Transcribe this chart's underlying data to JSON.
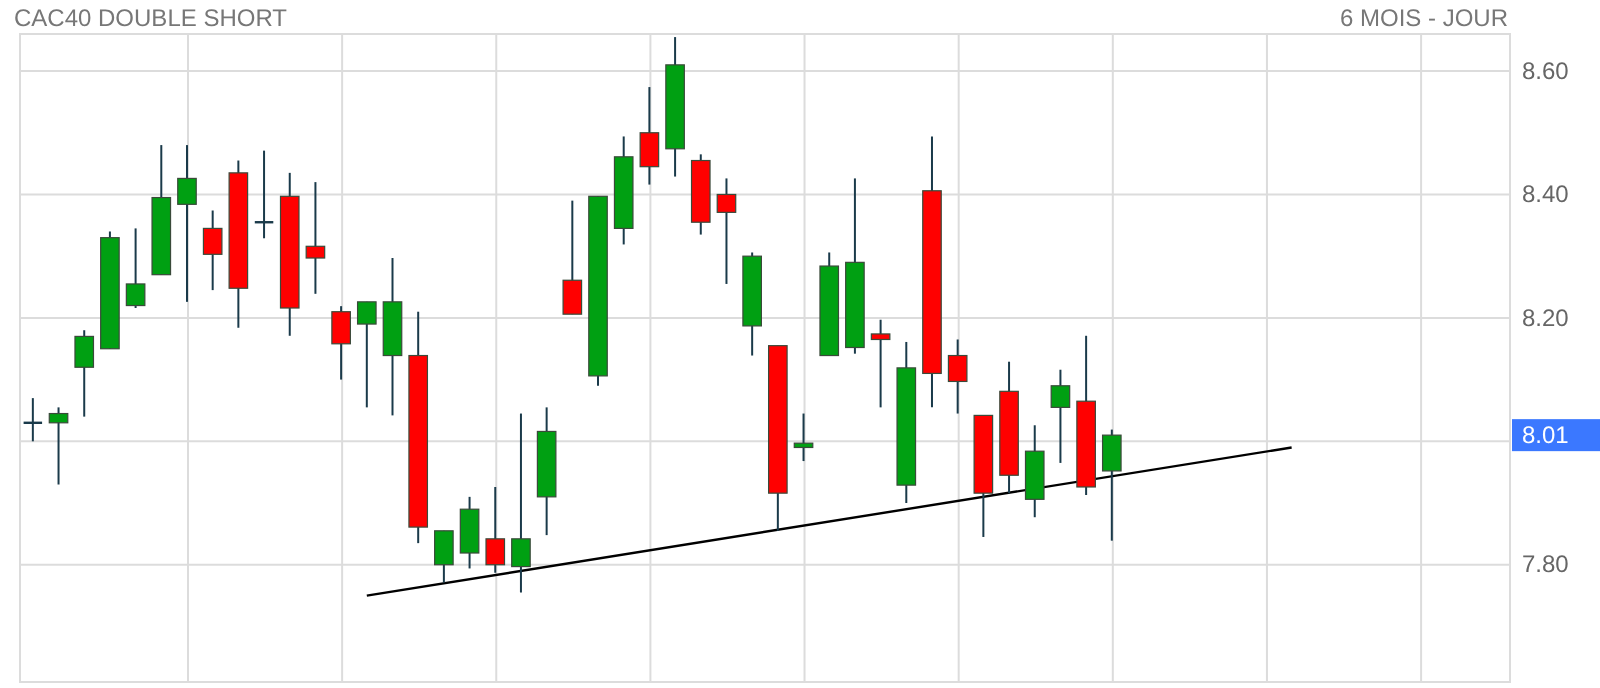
{
  "chart_data": {
    "type": "candlestick",
    "title": "CAC40 DOUBLE SHORT",
    "subtitle": "6 MOIS - JOUR",
    "categories": [
      null,
      null,
      null,
      null,
      null,
      null,
      null,
      null,
      null,
      null,
      null,
      null,
      null,
      null,
      null,
      null,
      null,
      null,
      null,
      null,
      null,
      null,
      null,
      null,
      null,
      null,
      null,
      null,
      null,
      null,
      null,
      null,
      null,
      null,
      null,
      null,
      null,
      null,
      null,
      null,
      null,
      null,
      null,
      null,
      null,
      null,
      null,
      null,
      null,
      null,
      null,
      null,
      null,
      null,
      null,
      null,
      null
    ],
    "ohlc": [
      [
        8.03,
        8.07,
        8.0,
        8.03
      ],
      [
        8.03,
        8.055,
        7.93,
        8.045
      ],
      [
        8.12,
        8.18,
        8.04,
        8.17
      ],
      [
        8.15,
        8.34,
        8.15,
        8.33
      ],
      [
        8.22,
        8.345,
        8.216,
        8.255
      ],
      [
        8.27,
        8.48,
        8.27,
        8.395
      ],
      [
        8.384,
        8.48,
        8.226,
        8.426
      ],
      [
        8.345,
        8.374,
        8.245,
        8.303
      ],
      [
        8.435,
        8.455,
        8.184,
        8.248
      ],
      [
        8.355,
        8.471,
        8.329,
        8.355
      ],
      [
        8.397,
        8.435,
        8.171,
        8.216
      ],
      [
        8.316,
        8.42,
        8.239,
        8.297
      ],
      [
        8.21,
        8.219,
        8.1,
        8.158
      ],
      [
        8.19,
        8.226,
        8.055,
        8.226
      ],
      [
        8.139,
        8.297,
        8.042,
        8.226
      ],
      [
        8.139,
        8.21,
        7.835,
        7.861
      ],
      [
        7.8,
        7.855,
        7.771,
        7.855
      ],
      [
        7.819,
        7.91,
        7.794,
        7.89
      ],
      [
        7.842,
        7.926,
        7.787,
        7.8
      ],
      [
        7.797,
        8.045,
        7.755,
        7.842
      ],
      [
        7.91,
        8.055,
        7.848,
        8.016
      ],
      [
        8.261,
        8.39,
        8.206,
        8.206
      ],
      [
        8.106,
        8.397,
        8.09,
        8.397
      ],
      [
        8.345,
        8.494,
        8.319,
        8.461
      ],
      [
        8.5,
        8.574,
        8.416,
        8.445
      ],
      [
        8.474,
        8.655,
        8.429,
        8.61
      ],
      [
        8.455,
        8.465,
        8.335,
        8.355
      ],
      [
        8.4,
        8.426,
        8.255,
        8.371
      ],
      [
        8.187,
        8.306,
        8.139,
        8.3
      ],
      [
        8.155,
        8.155,
        7.855,
        7.916
      ],
      [
        7.99,
        8.045,
        7.968,
        7.997
      ],
      [
        8.139,
        8.306,
        8.139,
        8.284
      ],
      [
        8.152,
        8.426,
        8.142,
        8.29
      ],
      [
        8.174,
        8.197,
        8.055,
        8.165
      ],
      [
        7.929,
        8.161,
        7.9,
        8.119
      ],
      [
        8.406,
        8.494,
        8.055,
        8.11
      ],
      [
        8.139,
        8.165,
        8.045,
        8.097
      ],
      [
        8.042,
        8.042,
        7.845,
        7.916
      ],
      [
        8.081,
        8.129,
        7.916,
        7.945
      ],
      [
        7.906,
        8.026,
        7.877,
        7.984
      ],
      [
        8.055,
        8.116,
        7.965,
        8.09
      ],
      [
        8.065,
        8.171,
        7.913,
        7.926
      ],
      [
        7.952,
        8.019,
        7.839,
        8.01
      ],
      null,
      null,
      null,
      null,
      null,
      null,
      null,
      null,
      null,
      null,
      null,
      null,
      null,
      null
    ],
    "colors": [
      "#1a3a4a",
      "#00a012",
      "#00a012",
      "#00a012",
      "#00a012",
      "#00a012",
      "#00a012",
      "#ff0000",
      "#ff0000",
      "#1a3a4a",
      "#ff0000",
      "#ff0000",
      "#ff0000",
      "#00a012",
      "#00a012",
      "#ff0000",
      "#00a012",
      "#00a012",
      "#ff0000",
      "#00a012",
      "#00a012",
      "#ff0000",
      "#00a012",
      "#00a012",
      "#ff0000",
      "#00a012",
      "#ff0000",
      "#ff0000",
      "#00a012",
      "#ff0000",
      "#00a012",
      "#00a012",
      "#00a012",
      "#ff0000",
      "#00a012",
      "#ff0000",
      "#ff0000",
      "#ff0000",
      "#ff0000",
      "#00a012",
      "#00a012",
      "#ff0000",
      "#00a012",
      null,
      null,
      null,
      null,
      null,
      null,
      null,
      null,
      null,
      null,
      null,
      null,
      null,
      null
    ],
    "series": [
      {
        "type": "line",
        "values": [
          null,
          null,
          null,
          null,
          null,
          null,
          null,
          null,
          null,
          null,
          null,
          null,
          null,
          7.75,
          null,
          null,
          null,
          null,
          null,
          null,
          null,
          null,
          null,
          null,
          null,
          null,
          null,
          null,
          null,
          null,
          null,
          null,
          null,
          null,
          null,
          null,
          null,
          null,
          null,
          null,
          null,
          null,
          null,
          null,
          null,
          null,
          null,
          null,
          null,
          7.99,
          null,
          null,
          null,
          null,
          null,
          null,
          null
        ],
        "color": "#000000"
      }
    ],
    "ylim": [
      7.61,
      8.66
    ],
    "yticks": [
      {
        "value": 7.8,
        "label": "7.80"
      },
      {
        "value": 8.0,
        "label": null
      },
      {
        "value": 8.2,
        "label": "8.20"
      },
      {
        "value": 8.4,
        "label": "8.40"
      },
      {
        "value": 8.6,
        "label": "8.60"
      }
    ],
    "annotations": [
      "8.01"
    ],
    "grid": true
  }
}
